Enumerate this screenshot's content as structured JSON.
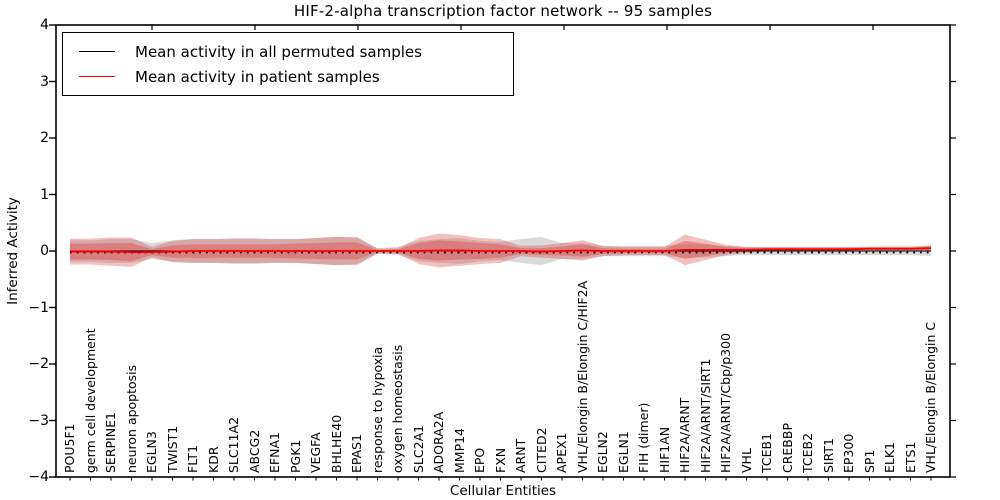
{
  "chart_data": {
    "type": "line",
    "title": "HIF-2-alpha transcription factor network -- 95 samples",
    "xlabel": "Cellular Entities",
    "ylabel": "Inferred Activity",
    "ylim": [
      -4,
      4
    ],
    "ytick_labels": [
      "−4",
      "−3",
      "−2",
      "−1",
      "0",
      "1",
      "2",
      "3",
      "4"
    ],
    "grid": false,
    "legend_position": "upper left",
    "categories": [
      "POU5F1",
      "germ cell development",
      "SERPINE1",
      "neuron apoptosis",
      "EGLN3",
      "TWIST1",
      "FLT1",
      "KDR",
      "SLC11A2",
      "ABCG2",
      "EFNA1",
      "PGK1",
      "VEGFA",
      "BHLHE40",
      "EPAS1",
      "response to hypoxia",
      "oxygen homeostasis",
      "SLC2A1",
      "ADORA2A",
      "MMP14",
      "EPO",
      "FXN",
      "ARNT",
      "CITED2",
      "APEX1",
      "VHL/Elongin B/Elongin C/HIF2A",
      "EGLN2",
      "EGLN1",
      "FIH (dimer)",
      "HIF1AN",
      "HIF2A/ARNT",
      "HIF2A/ARNT/SIRT1",
      "HIF2A/ARNT/Cbp/p300",
      "VHL",
      "TCEB1",
      "CREBBP",
      "TCEB2",
      "SIRT1",
      "EP300",
      "SP1",
      "ELK1",
      "ETS1",
      "VHL/Elongin B/Elongin C"
    ],
    "series": [
      {
        "name": "Mean activity in all permuted samples",
        "color": "#000000",
        "style": "solid-with-dotted-overlay",
        "values": [
          0,
          0,
          0,
          0,
          0,
          0,
          0,
          0,
          0,
          0,
          0,
          0,
          0,
          0,
          0,
          0,
          0,
          0,
          0,
          0,
          0,
          0,
          0,
          0,
          0,
          0,
          0,
          0,
          0,
          0,
          0,
          0,
          0,
          0,
          0,
          0,
          0,
          0,
          0,
          0,
          0,
          0,
          0
        ]
      },
      {
        "name": "Mean activity in patient samples",
        "color": "#ff0000",
        "style": "solid",
        "values": [
          -0.01,
          -0.01,
          -0.01,
          -0.02,
          -0.02,
          -0.01,
          0,
          0,
          0,
          0,
          0,
          0,
          0,
          0,
          0,
          0,
          0,
          0,
          0.01,
          0.01,
          0,
          0,
          0,
          -0.01,
          0,
          0.01,
          0,
          0,
          0,
          0,
          0.02,
          0.02,
          0.02,
          0.02,
          0.03,
          0.03,
          0.03,
          0.03,
          0.03,
          0.04,
          0.04,
          0.04,
          0.05
        ]
      }
    ],
    "bands": [
      {
        "name": "permuted-samples-spread",
        "center": "zero",
        "color": "#969696",
        "opacity": 0.35,
        "half_widths": [
          0.19,
          0.19,
          0.21,
          0.21,
          0.14,
          0.19,
          0.21,
          0.21,
          0.23,
          0.23,
          0.21,
          0.21,
          0.23,
          0.25,
          0.23,
          0.05,
          0.07,
          0.18,
          0.21,
          0.23,
          0.18,
          0.16,
          0.21,
          0.25,
          0.14,
          0.14,
          0.09,
          0.09,
          0.09,
          0.09,
          0.12,
          0.11,
          0.09,
          0.07,
          0.07,
          0.07,
          0.07,
          0.07,
          0.07,
          0.07,
          0.07,
          0.07,
          0.09
        ]
      },
      {
        "name": "patient-samples-outer-spread",
        "center": "patient",
        "color": "#d73c3c",
        "opacity": 0.32,
        "half_widths": [
          0.23,
          0.23,
          0.25,
          0.26,
          0.09,
          0.19,
          0.21,
          0.21,
          0.21,
          0.21,
          0.21,
          0.21,
          0.23,
          0.25,
          0.25,
          0.04,
          0.05,
          0.23,
          0.3,
          0.27,
          0.23,
          0.21,
          0.09,
          0.11,
          0.14,
          0.18,
          0.09,
          0.07,
          0.07,
          0.07,
          0.27,
          0.18,
          0.09,
          0.05,
          0.04,
          0.04,
          0.04,
          0.04,
          0.04,
          0.04,
          0.04,
          0.04,
          0.05
        ]
      },
      {
        "name": "patient-samples-inner-spread",
        "center": "patient",
        "color": "#d73c3c",
        "opacity": 0.38,
        "half_widths": [
          0.14,
          0.14,
          0.15,
          0.16,
          0.05,
          0.11,
          0.12,
          0.12,
          0.12,
          0.12,
          0.12,
          0.13,
          0.14,
          0.15,
          0.15,
          0.02,
          0.03,
          0.14,
          0.18,
          0.16,
          0.14,
          0.12,
          0.05,
          0.06,
          0.08,
          0.11,
          0.05,
          0.04,
          0.04,
          0.04,
          0.16,
          0.11,
          0.05,
          0.03,
          0.02,
          0.02,
          0.02,
          0.02,
          0.02,
          0.02,
          0.02,
          0.02,
          0.03
        ]
      }
    ],
    "legend": {
      "entries": [
        {
          "label": "Mean activity in all permuted samples",
          "color": "#000000"
        },
        {
          "label": "Mean activity in patient samples",
          "color": "#ff0000"
        }
      ]
    }
  }
}
